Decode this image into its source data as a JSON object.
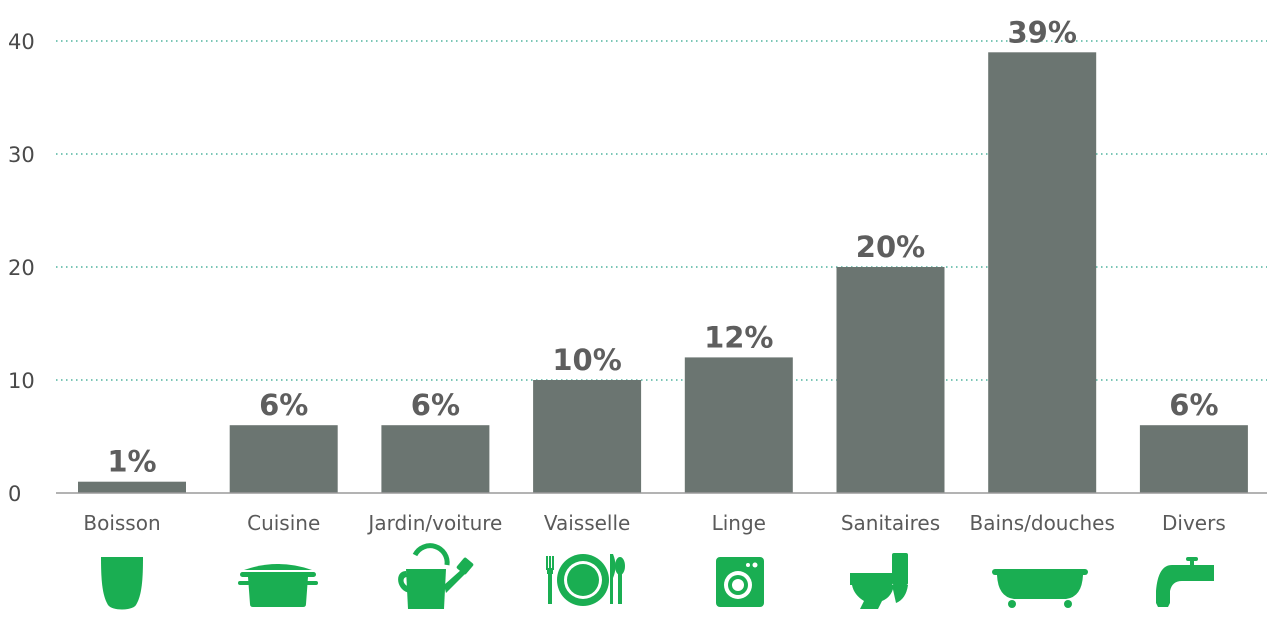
{
  "chart_data": {
    "type": "bar",
    "categories": [
      "Boisson",
      "Cuisine",
      "Jardin/voiture",
      "Vaisselle",
      "Linge",
      "Sanitaires",
      "Bains/douches",
      "Divers"
    ],
    "values": [
      1,
      6,
      6,
      10,
      12,
      20,
      39,
      6
    ],
    "data_labels": [
      "1%",
      "6%",
      "6%",
      "10%",
      "12%",
      "20%",
      "39%",
      "6%"
    ],
    "icons": [
      "glass-icon",
      "cooking-pot-icon",
      "watering-can-icon",
      "plate-cutlery-icon",
      "washing-machine-icon",
      "toilet-icon",
      "bathtub-icon",
      "faucet-icon"
    ],
    "yticks": [
      "0",
      "10",
      "20",
      "30",
      "40"
    ],
    "ylim": [
      0,
      40
    ],
    "grid": true,
    "colors": {
      "bar": "#6b7571",
      "icon": "#1aae52",
      "grid": "#2aa38a"
    }
  }
}
